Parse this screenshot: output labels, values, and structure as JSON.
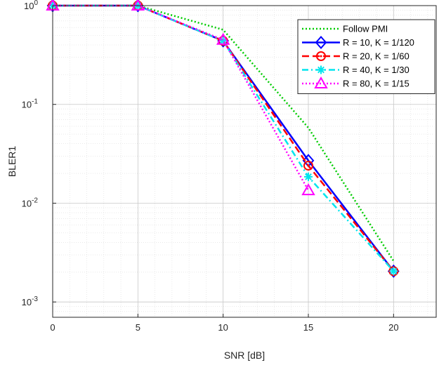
{
  "chart_data": {
    "type": "line",
    "title": "",
    "xlabel": "SNR [dB]",
    "ylabel": "BLER1",
    "xlim": [
      0,
      22.5
    ],
    "ylim": [
      0.0007,
      1
    ],
    "yscale": "log",
    "grid": true,
    "minor_grid": true,
    "legend_position": "top-right",
    "x_ticks": [
      0,
      5,
      10,
      15,
      20
    ],
    "x_tick_labels": [
      "0",
      "5",
      "10",
      "15",
      "20"
    ],
    "y_ticks": [
      0.001,
      0.01,
      0.1,
      1
    ],
    "y_tick_exponents": [
      "-3",
      "-2",
      "-1",
      "0"
    ],
    "y_tick_base": "10",
    "series": [
      {
        "name": "Follow PMI",
        "color": "#00cc00",
        "line_style": "dotted",
        "marker": "none",
        "x": [
          0,
          5,
          10,
          15,
          20
        ],
        "y": [
          1.0,
          1.0,
          0.57,
          0.058,
          0.0026
        ]
      },
      {
        "name": "R = 10, K = 1/120",
        "color": "#0000ff",
        "line_style": "solid",
        "marker": "diamond",
        "x": [
          0,
          5,
          10,
          15,
          20
        ],
        "y": [
          1.0,
          1.0,
          0.44,
          0.027,
          0.00205
        ]
      },
      {
        "name": "R = 20, K = 1/60",
        "color": "#ff0000",
        "line_style": "dashed",
        "marker": "circle",
        "x": [
          0,
          5,
          10,
          15,
          20
        ],
        "y": [
          1.0,
          1.0,
          0.44,
          0.024,
          0.00205
        ]
      },
      {
        "name": "R = 40, K = 1/30",
        "color": "#00e5ee",
        "line_style": "dashdot",
        "marker": "asterisk",
        "x": [
          0,
          5,
          10,
          15,
          20
        ],
        "y": [
          1.0,
          1.0,
          0.44,
          0.0185,
          0.00205
        ]
      },
      {
        "name": "R = 80, K = 1/15",
        "color": "#ff00ff",
        "line_style": "dotted",
        "marker": "triangle",
        "x": [
          0,
          5,
          10,
          15
        ],
        "y": [
          1.0,
          1.0,
          0.45,
          0.0135
        ]
      }
    ]
  }
}
